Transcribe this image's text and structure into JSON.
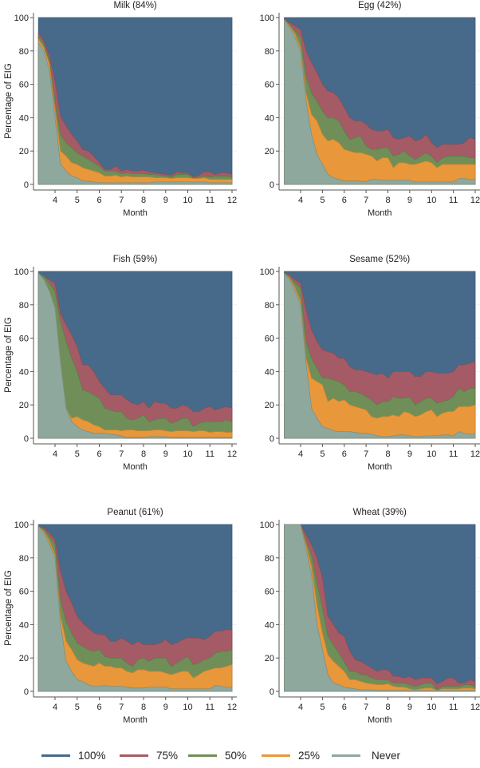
{
  "chart_data": {
    "type": "area",
    "layout": "3x2 small multiples",
    "legend": {
      "placement": "bottom",
      "entries": [
        {
          "label": "100%",
          "color": "#476A8A"
        },
        {
          "label": "75%",
          "color": "#A55B66"
        },
        {
          "label": "50%",
          "color": "#708F58"
        },
        {
          "label": "25%",
          "color": "#E8983A"
        },
        {
          "label": "Never",
          "color": "#8FA89E"
        }
      ]
    },
    "x": [
      3.25,
      3.5,
      3.75,
      4,
      4.25,
      4.5,
      4.75,
      5,
      5.25,
      5.5,
      5.75,
      6,
      6.25,
      6.5,
      6.75,
      7,
      7.25,
      7.5,
      7.75,
      8,
      8.25,
      8.5,
      8.75,
      9,
      9.25,
      9.5,
      9.75,
      10,
      10.25,
      10.5,
      10.75,
      11,
      11.25,
      11.5,
      11.75,
      12
    ],
    "xlabel": "Month",
    "ylabel": "Percentage of EIG",
    "xlim": [
      3.25,
      12
    ],
    "ylim": [
      0,
      100
    ],
    "xticks": [
      4,
      5,
      6,
      7,
      8,
      9,
      10,
      11,
      12
    ],
    "yticks": [
      0,
      20,
      40,
      60,
      80,
      100
    ],
    "stacking_note": "values are cumulative upper boundaries of each stacked band; 100% band fills to 100",
    "panels": [
      {
        "title": "Milk (84%)",
        "show_ylabel": true,
        "series": [
          {
            "name": "Never",
            "values": [
              85,
              80,
              68,
              40,
              12,
              8,
              5,
              4,
              2,
              2,
              1.5,
              1,
              1,
              1,
              1,
              1,
              1,
              1,
              1,
              1,
              1,
              1.5,
              1.5,
              1.5,
              1.5,
              1.5,
              1.5,
              1.5,
              1.5,
              1.5,
              1.5,
              1,
              1,
              1,
              1,
              1
            ]
          },
          {
            "name": "25%",
            "values": [
              87,
              82,
              72,
              45,
              20,
              17,
              13,
              12,
              10,
              9,
              8,
              7,
              5,
              5,
              5.5,
              4.5,
              5,
              4.5,
              4.5,
              4.5,
              4.5,
              4,
              4,
              4,
              3.5,
              4,
              4,
              4,
              3.5,
              3.5,
              4,
              3,
              3,
              3,
              3,
              3
            ]
          },
          {
            "name": "50%",
            "values": [
              89,
              84,
              74,
              50,
              30,
              25,
              22,
              19,
              17,
              15,
              13,
              11,
              8,
              8,
              8,
              6.5,
              7,
              6.5,
              6.5,
              6.5,
              6,
              6,
              5.5,
              5,
              4.5,
              6,
              6,
              6,
              4,
              4.5,
              5,
              4.5,
              5,
              5,
              5,
              4.5
            ]
          },
          {
            "name": "75%",
            "values": [
              91,
              86,
              77,
              62,
              41,
              35,
              30,
              26,
              21,
              20,
              17,
              13,
              9,
              9,
              11,
              8,
              9,
              8,
              8,
              8.5,
              7.5,
              7,
              6.5,
              6,
              5.5,
              7.5,
              7,
              7,
              4.5,
              5.5,
              7.5,
              7.5,
              6,
              7,
              7,
              6
            ]
          }
        ]
      },
      {
        "title": "Egg (42%)",
        "show_ylabel": false,
        "series": [
          {
            "name": "Never",
            "values": [
              99,
              94,
              88,
              80,
              50,
              30,
              18,
              12,
              6,
              4,
              3,
              2,
              2,
              2,
              2,
              1.5,
              3,
              3,
              2.5,
              2.5,
              2.5,
              2.5,
              2.5,
              2.5,
              1.5,
              1.5,
              1.5,
              1.5,
              1.5,
              1.5,
              1.5,
              1.5,
              3.5,
              3.5,
              3,
              3
            ]
          },
          {
            "name": "25%",
            "values": [
              99,
              95,
              90,
              82,
              55,
              42,
              38,
              30,
              26,
              27,
              25,
              21,
              20,
              19,
              19,
              18,
              17,
              14,
              16,
              16,
              10,
              13,
              13,
              12,
              12,
              13,
              14,
              13,
              10,
              12,
              12,
              12,
              12,
              12,
              12,
              12
            ]
          },
          {
            "name": "50%",
            "values": [
              99,
              96,
              92,
              88,
              65,
              55,
              50,
              44,
              40,
              40,
              38,
              32,
              27,
              28,
              29,
              23,
              21,
              21,
              22,
              22,
              17,
              18,
              20,
              17,
              15,
              17,
              19,
              17,
              13,
              16,
              17,
              17,
              17,
              17,
              16,
              16
            ]
          },
          {
            "name": "75%",
            "values": [
              99,
              97,
              95,
              93,
              80,
              73,
              67,
              60,
              56,
              55,
              52,
              46,
              40,
              38,
              38,
              36,
              33,
              32,
              32,
              33,
              28,
              27,
              28,
              29,
              26,
              27,
              30,
              25,
              22,
              24,
              24,
              24,
              24,
              25,
              28,
              27
            ]
          }
        ]
      },
      {
        "title": "Fish (59%)",
        "show_ylabel": true,
        "series": [
          {
            "name": "Never",
            "values": [
              99,
              95,
              88,
              78,
              45,
              18,
              10,
              7,
              5,
              4,
              3,
              3,
              3,
              2.5,
              2,
              1.5,
              0.5,
              0.5,
              0.5,
              0.5,
              1,
              1,
              1,
              1,
              0.5,
              0.5,
              0.5,
              0.5,
              0.5,
              0.5,
              0.5,
              0.5,
              0.5,
              0.5,
              0.5,
              0.5
            ]
          },
          {
            "name": "25%",
            "values": [
              99,
              95,
              88,
              78,
              45,
              18,
              12,
              13,
              11,
              10,
              8,
              7,
              5,
              5,
              5,
              4.5,
              5,
              5,
              4.5,
              4.5,
              4.5,
              5,
              5,
              4.5,
              4,
              4.5,
              4.5,
              4.5,
              4,
              4.5,
              4.5,
              3.5,
              4,
              4,
              3.5,
              3.5
            ]
          },
          {
            "name": "50%",
            "values": [
              99,
              97,
              93,
              88,
              70,
              58,
              48,
              40,
              29,
              28,
              26,
              24,
              18,
              17,
              16,
              16,
              12,
              11,
              12,
              14,
              10,
              11,
              12,
              12,
              9,
              10,
              12,
              12,
              7,
              9,
              10,
              10,
              10,
              10,
              11,
              10
            ]
          },
          {
            "name": "75%",
            "values": [
              99,
              97,
              95,
              93,
              75,
              68,
              62,
              55,
              44,
              44,
              40,
              34,
              30,
              26,
              26,
              26,
              23,
              21,
              20,
              22,
              18,
              22,
              21,
              21,
              18,
              18,
              20,
              19,
              16,
              16,
              18,
              19,
              17,
              18,
              19,
              18
            ]
          }
        ]
      },
      {
        "title": "Sesame (52%)",
        "show_ylabel": false,
        "series": [
          {
            "name": "Never",
            "values": [
              99,
              95,
              88,
              80,
              45,
              18,
              12,
              7,
              6,
              4.5,
              4,
              4,
              4,
              3.5,
              3,
              3,
              2.5,
              1.5,
              1,
              1,
              1.5,
              2,
              2,
              1.5,
              1,
              1,
              1.5,
              1.5,
              1.5,
              2,
              2,
              1.5,
              4,
              3,
              2.5,
              2.5
            ]
          },
          {
            "name": "25%",
            "values": [
              99,
              96,
              90,
              82,
              48,
              36,
              34,
              32,
              22,
              24,
              22,
              23,
              20,
              19,
              18,
              17,
              13,
              12,
              13,
              13,
              14,
              13,
              16,
              15,
              13,
              14,
              16,
              17,
              13,
              15,
              16,
              16,
              19,
              19,
              19,
              20
            ]
          },
          {
            "name": "50%",
            "values": [
              99,
              97,
              93,
              90,
              58,
              48,
              42,
              36,
              36,
              35,
              34,
              32,
              28,
              28,
              27,
              25,
              23,
              20,
              22,
              22,
              25,
              24,
              24,
              25,
              20,
              22,
              24,
              24,
              21,
              22,
              23,
              25,
              30,
              28,
              30,
              30
            ]
          },
          {
            "name": "75%",
            "values": [
              99,
              98,
              95,
              93,
              77,
              65,
              58,
              53,
              52,
              51,
              48,
              48,
              43,
              41,
              41,
              40,
              39,
              38,
              39,
              36,
              40,
              40,
              40,
              40,
              37,
              37,
              40,
              40,
              39,
              39,
              39,
              40,
              44,
              44,
              45,
              46
            ]
          }
        ]
      },
      {
        "title": "Peanut (61%)",
        "show_ylabel": true,
        "series": [
          {
            "name": "Never",
            "values": [
              99,
              95,
              88,
              80,
              40,
              18,
              12,
              7,
              6,
              4,
              3,
              3,
              3.5,
              3,
              3,
              3,
              2.5,
              2,
              2,
              2,
              2.5,
              2.5,
              2.5,
              2.5,
              1.5,
              1.5,
              1.5,
              1.5,
              1.5,
              1.5,
              1.5,
              1.5,
              3.5,
              3,
              2.5,
              2.5
            ]
          },
          {
            "name": "25%",
            "values": [
              99,
              96,
              90,
              82,
              45,
              30,
              25,
              19,
              17,
              16,
              15,
              17,
              15,
              15,
              14,
              14,
              12,
              11,
              13,
              13,
              12,
              12,
              12,
              11,
              10,
              11,
              12,
              12,
              8,
              10,
              12,
              13,
              14,
              14,
              15,
              16
            ]
          },
          {
            "name": "50%",
            "values": [
              99,
              97,
              93,
              88,
              55,
              42,
              35,
              29,
              27,
              25,
              24,
              25,
              21,
              20,
              20,
              20,
              17,
              15,
              19,
              20,
              18,
              20,
              20,
              20,
              15,
              17,
              19,
              21,
              16,
              17,
              19,
              20,
              23,
              24,
              24,
              25
            ]
          },
          {
            "name": "75%",
            "values": [
              99,
              98,
              95,
              91,
              72,
              60,
              53,
              45,
              41,
              38,
              35,
              34,
              34,
              30,
              30,
              32,
              30,
              28,
              30,
              28,
              28,
              28,
              29,
              31,
              28,
              29,
              31,
              32,
              32,
              32,
              31,
              33,
              36,
              36,
              37,
              37
            ]
          }
        ]
      },
      {
        "title": "Wheat (39%)",
        "show_ylabel": false,
        "series": [
          {
            "name": "Never",
            "values": [
              100,
              100,
              100,
              100,
              85,
              70,
              40,
              25,
              10,
              5,
              4,
              2.5,
              2,
              1.5,
              1,
              1,
              1,
              0.5,
              0.5,
              0.5,
              0.5,
              0.5,
              0.5,
              0.5,
              0.5,
              0.5,
              0.5,
              0.5,
              0.5,
              0.5,
              0.5,
              0.5,
              0.5,
              0.5,
              0.5,
              0.5
            ]
          },
          {
            "name": "25%",
            "values": [
              100,
              100,
              100,
              100,
              88,
              75,
              52,
              35,
              22,
              18,
              15,
              12,
              7,
              7,
              6,
              5,
              4.5,
              4,
              4,
              4.5,
              3,
              2.5,
              2.5,
              1.5,
              1,
              1.5,
              2,
              2,
              0.5,
              1.5,
              1.5,
              1.5,
              1.5,
              2,
              2,
              1.5
            ]
          },
          {
            "name": "50%",
            "values": [
              100,
              100,
              100,
              100,
              90,
              82,
              65,
              50,
              33,
              28,
              23,
              18,
              12,
              12,
              10,
              10,
              8,
              7,
              7,
              7,
              5,
              5,
              5,
              4,
              3,
              4,
              5,
              5,
              1,
              3,
              3,
              3,
              3,
              4,
              4,
              3
            ]
          },
          {
            "name": "75%",
            "values": [
              100,
              100,
              100,
              100,
              94,
              88,
              80,
              68,
              45,
              40,
              35,
              33,
              24,
              19,
              18,
              16,
              14,
              12,
              13,
              13,
              9,
              9,
              8,
              9,
              7,
              8,
              8,
              8,
              4.5,
              6,
              8,
              8,
              5,
              5,
              7,
              6
            ]
          }
        ]
      }
    ]
  }
}
